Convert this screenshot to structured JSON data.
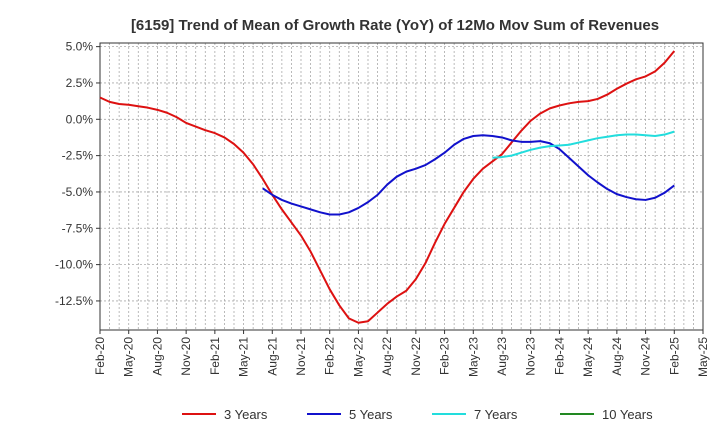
{
  "chart_data": {
    "type": "line",
    "title": "[6159]  Trend of Mean of Growth Rate (YoY) of 12Mo Mov Sum of Revenues",
    "xlabel": "",
    "ylabel": "",
    "ylim": [
      -14.5,
      5.25
    ],
    "y_ticks": [
      5.0,
      2.5,
      0.0,
      -2.5,
      -5.0,
      -7.5,
      -10.0,
      -12.5
    ],
    "y_tick_labels": [
      "5.0%",
      "2.5%",
      "0.0%",
      "-2.5%",
      "-5.0%",
      "-7.5%",
      "-10.0%",
      "-12.5%"
    ],
    "x_tick_labels": [
      "Feb-20",
      "May-20",
      "Aug-20",
      "Nov-20",
      "Feb-21",
      "May-21",
      "Aug-21",
      "Nov-21",
      "Feb-22",
      "May-22",
      "Aug-22",
      "Nov-22",
      "Feb-23",
      "May-23",
      "Aug-23",
      "Nov-23",
      "Feb-24",
      "May-24",
      "Aug-24",
      "Nov-24",
      "Feb-25",
      "May-25"
    ],
    "x_unit": "month index from Feb-20",
    "xlim": [
      0,
      63
    ],
    "grid": true,
    "legend_position": "bottom",
    "series": [
      {
        "name": "3 Years",
        "color": "#dd1111",
        "x": [
          0,
          1,
          2,
          3,
          4,
          5,
          6,
          7,
          8,
          9,
          10,
          11,
          12,
          13,
          14,
          15,
          16,
          17,
          18,
          19,
          20,
          21,
          22,
          23,
          24,
          25,
          26,
          27,
          28,
          29,
          30,
          31,
          32,
          33,
          34,
          35,
          36,
          37,
          38,
          39,
          40,
          41,
          42,
          43,
          44,
          45,
          46,
          47,
          48,
          49,
          50,
          51,
          52,
          53,
          54,
          55,
          56,
          57,
          58,
          59,
          60
        ],
        "values": [
          1.5,
          1.2,
          1.05,
          1.0,
          0.9,
          0.8,
          0.65,
          0.45,
          0.15,
          -0.25,
          -0.5,
          -0.75,
          -0.95,
          -1.25,
          -1.7,
          -2.3,
          -3.1,
          -4.1,
          -5.2,
          -6.2,
          -7.1,
          -8.0,
          -9.1,
          -10.4,
          -11.7,
          -12.8,
          -13.7,
          -14.0,
          -13.9,
          -13.3,
          -12.7,
          -12.2,
          -11.8,
          -11.0,
          -9.9,
          -8.5,
          -7.2,
          -6.1,
          -5.0,
          -4.1,
          -3.4,
          -2.9,
          -2.4,
          -1.6,
          -0.8,
          -0.1,
          0.4,
          0.75,
          0.95,
          1.1,
          1.2,
          1.25,
          1.4,
          1.7,
          2.1,
          2.45,
          2.75,
          2.95,
          3.3,
          3.9,
          4.7
        ]
      },
      {
        "name": "5 Years",
        "color": "#1111cc",
        "x": [
          17,
          18,
          19,
          20,
          21,
          22,
          23,
          24,
          25,
          26,
          27,
          28,
          29,
          30,
          31,
          32,
          33,
          34,
          35,
          36,
          37,
          38,
          39,
          40,
          41,
          42,
          43,
          44,
          45,
          46,
          47,
          48,
          49,
          50,
          51,
          52,
          53,
          54,
          55,
          56,
          57,
          58,
          59,
          60
        ],
        "values": [
          -4.75,
          -5.2,
          -5.55,
          -5.8,
          -6.0,
          -6.2,
          -6.4,
          -6.55,
          -6.55,
          -6.4,
          -6.1,
          -5.7,
          -5.2,
          -4.5,
          -3.95,
          -3.6,
          -3.4,
          -3.15,
          -2.75,
          -2.3,
          -1.75,
          -1.35,
          -1.15,
          -1.1,
          -1.15,
          -1.25,
          -1.45,
          -1.55,
          -1.55,
          -1.5,
          -1.65,
          -2.05,
          -2.65,
          -3.25,
          -3.85,
          -4.35,
          -4.8,
          -5.15,
          -5.35,
          -5.5,
          -5.55,
          -5.4,
          -5.05,
          -4.55
        ]
      },
      {
        "name": "7 Years",
        "color": "#22dddd",
        "x": [
          41,
          42,
          43,
          44,
          45,
          46,
          47,
          48,
          49,
          50,
          51,
          52,
          53,
          54,
          55,
          56,
          57,
          58,
          59,
          60
        ],
        "values": [
          -2.65,
          -2.6,
          -2.5,
          -2.3,
          -2.1,
          -1.95,
          -1.85,
          -1.8,
          -1.75,
          -1.6,
          -1.45,
          -1.3,
          -1.2,
          -1.1,
          -1.05,
          -1.05,
          -1.1,
          -1.15,
          -1.05,
          -0.85
        ]
      },
      {
        "name": "10 Years",
        "color": "#228822",
        "x": [],
        "values": []
      }
    ]
  }
}
